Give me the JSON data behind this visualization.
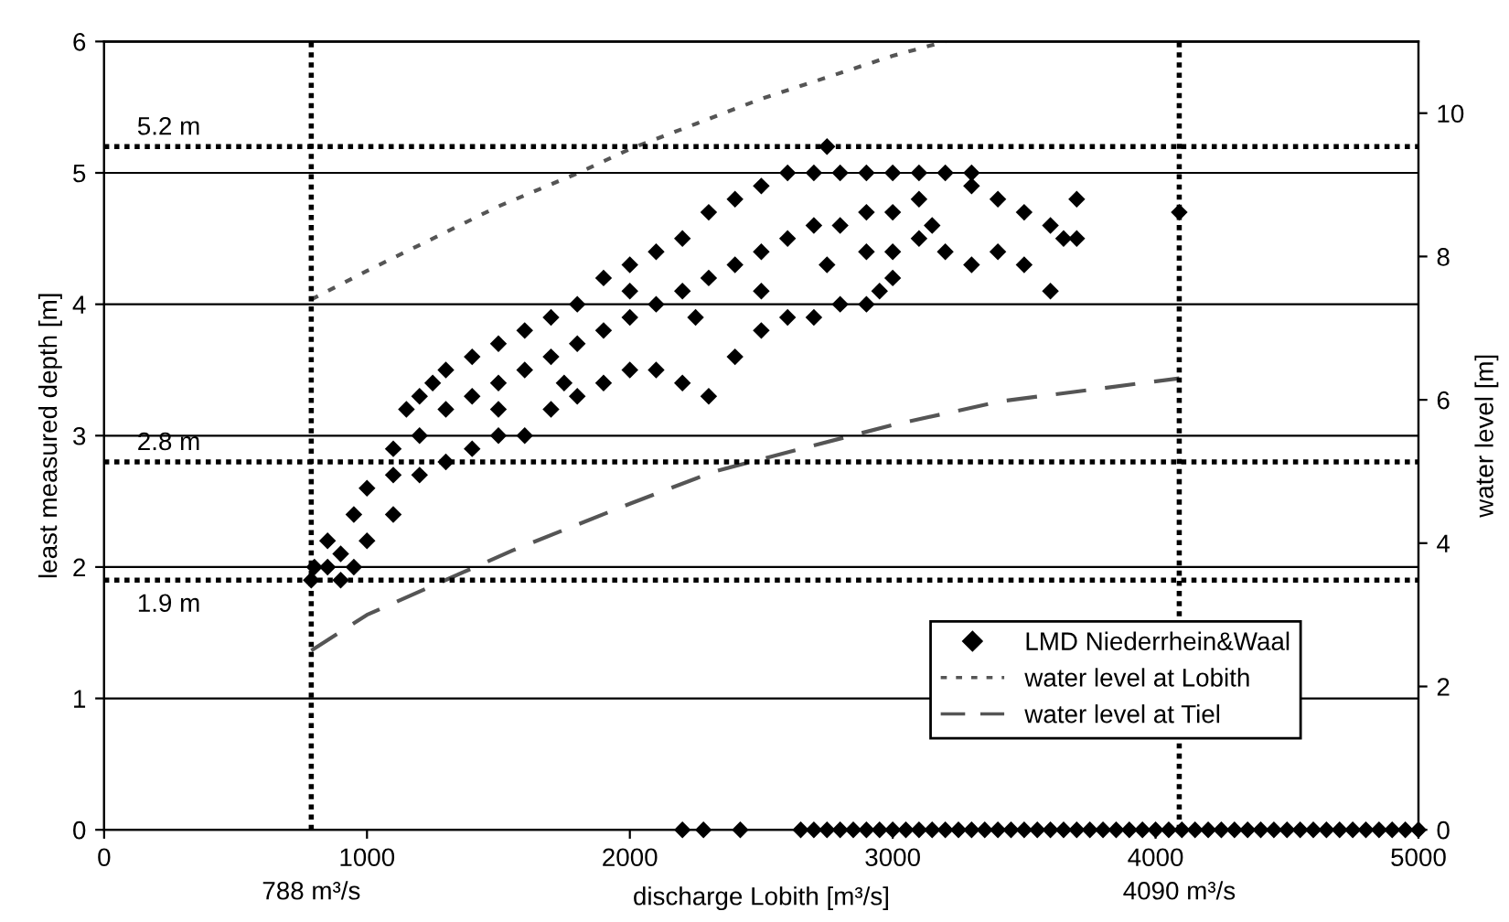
{
  "chart_data": {
    "type": "scatter",
    "xlabel": "discharge Lobith [m³/s]",
    "ylabel": "least measured depth [m]",
    "y2label": "water level [m]",
    "xlim": [
      0,
      5000
    ],
    "xticks": [
      0,
      1000,
      2000,
      3000,
      4000,
      5000
    ],
    "ylim": [
      0,
      6
    ],
    "yticks": [
      0,
      1,
      2,
      3,
      4,
      5,
      6
    ],
    "y2lim": [
      0,
      11
    ],
    "y2ticks": [
      0,
      2,
      4,
      6,
      8,
      10
    ],
    "grid": "y",
    "legend": "bottom right",
    "ref_lines": [
      {
        "axis": "x",
        "value": 788,
        "label": "788 m³/s",
        "color": "#000000",
        "line_style": "dotted"
      },
      {
        "axis": "x",
        "value": 4090,
        "label": "4090 m³/s",
        "color": "#000000",
        "line_style": "dotted"
      },
      {
        "axis": "y",
        "value": 5.2,
        "label": "5.2 m",
        "color": "#000000",
        "line_style": "dotted"
      },
      {
        "axis": "y",
        "value": 2.8,
        "label": "2.8 m",
        "color": "#000000",
        "line_style": "dotted"
      },
      {
        "axis": "y",
        "value": 1.9,
        "label": "1.9 m",
        "color": "#000000",
        "line_style": "dotted"
      }
    ],
    "series": [
      {
        "name": "LMD Niederrhein&Waal",
        "color": "#000000",
        "marker": "diamond",
        "x": [
          788,
          800,
          850,
          900,
          900,
          950,
          850,
          950,
          1000,
          1100,
          1150,
          1200,
          1300,
          1400,
          1500,
          1600,
          1700,
          1800,
          1900,
          2000,
          2100,
          2200,
          2300,
          2400,
          2500,
          2600,
          2700,
          2750,
          2800,
          2900,
          3000,
          3100,
          3200,
          3300,
          1000,
          1100,
          1200,
          1300,
          1400,
          1500,
          1600,
          1700,
          1800,
          1900,
          2000,
          2100,
          2200,
          2300,
          2400,
          2500,
          2600,
          2700,
          2800,
          2900,
          1100,
          1200,
          1300,
          1400,
          1500,
          1600,
          1700,
          1800,
          1900,
          2000,
          2100,
          2200,
          2300,
          2400,
          2500,
          2600,
          2700,
          2800,
          2900,
          3000,
          1250,
          1500,
          1750,
          2000,
          2250,
          2500,
          2750,
          3000,
          3100,
          3200,
          3300,
          3400,
          3500,
          3600,
          3650,
          3700,
          3700,
          3600,
          3500,
          3400,
          3300,
          3150,
          3100,
          4090,
          3000,
          2950,
          2900,
          2200,
          2280,
          2420,
          2650,
          2700,
          2750,
          2800,
          2850,
          2900,
          2950,
          3000,
          3050,
          3100,
          3150,
          3200,
          3250,
          3300,
          3350,
          3400,
          3450,
          3500,
          3550,
          3600,
          3650,
          3700,
          3750,
          3800,
          3850,
          3900,
          3950,
          4000,
          4050,
          4100,
          4150,
          4200,
          4250,
          4300,
          4350,
          4400,
          4450,
          4500,
          4550,
          4600,
          4650,
          4700,
          4750,
          4800,
          4850,
          4900,
          4950,
          5000
        ],
        "values": [
          1.9,
          2.0,
          2.0,
          1.9,
          2.1,
          2.0,
          2.2,
          2.4,
          2.6,
          2.9,
          3.2,
          3.3,
          3.5,
          3.6,
          3.7,
          3.8,
          3.9,
          4.0,
          4.2,
          4.3,
          4.4,
          4.5,
          4.7,
          4.8,
          4.9,
          5.0,
          5.0,
          5.2,
          5.0,
          5.0,
          5.0,
          5.0,
          5.0,
          5.0,
          2.2,
          2.4,
          2.7,
          2.8,
          2.9,
          3.0,
          3.0,
          3.2,
          3.3,
          3.4,
          3.5,
          3.5,
          3.4,
          3.3,
          3.6,
          3.8,
          3.9,
          3.9,
          4.0,
          4.0,
          2.7,
          3.0,
          3.2,
          3.3,
          3.4,
          3.5,
          3.6,
          3.7,
          3.8,
          3.9,
          4.0,
          4.1,
          4.2,
          4.3,
          4.4,
          4.5,
          4.6,
          4.6,
          4.7,
          4.7,
          3.4,
          3.2,
          3.4,
          4.1,
          3.9,
          4.1,
          4.3,
          4.4,
          4.5,
          4.4,
          4.3,
          4.4,
          4.3,
          4.1,
          4.5,
          4.5,
          4.8,
          4.6,
          4.7,
          4.8,
          4.9,
          4.6,
          4.8,
          4.7,
          4.2,
          4.1,
          4.4,
          0,
          0,
          0,
          0,
          0,
          0,
          0,
          0,
          0,
          0,
          0,
          0,
          0,
          0,
          0,
          0,
          0,
          0,
          0,
          0,
          0,
          0,
          0,
          0,
          0,
          0,
          0,
          0,
          0,
          0,
          0,
          0,
          0,
          0,
          0,
          0,
          0,
          0,
          0,
          0,
          0,
          0,
          0,
          0,
          0,
          0,
          0,
          0,
          0,
          0,
          0
        ]
      },
      {
        "name": "water level at Lobith",
        "type": "line",
        "axis": "y2",
        "color": "#555555",
        "line_style": "dotted",
        "marker": "none",
        "x": [
          788,
          1000,
          1500,
          1813,
          2000,
          2500,
          3000,
          3200
        ],
        "values": [
          7.4,
          7.8,
          8.7,
          9.18,
          9.5,
          10.2,
          10.8,
          11.0
        ]
      },
      {
        "name": "water level at Tiel",
        "type": "line",
        "axis": "y2",
        "color": "#555555",
        "line_style": "dashed",
        "marker": "none",
        "x": [
          788,
          1000,
          1555,
          2000,
          2321,
          3000,
          3413,
          4090
        ],
        "values": [
          2.5,
          3.0,
          3.9,
          4.55,
          5.0,
          5.65,
          5.98,
          6.3
        ]
      }
    ]
  }
}
